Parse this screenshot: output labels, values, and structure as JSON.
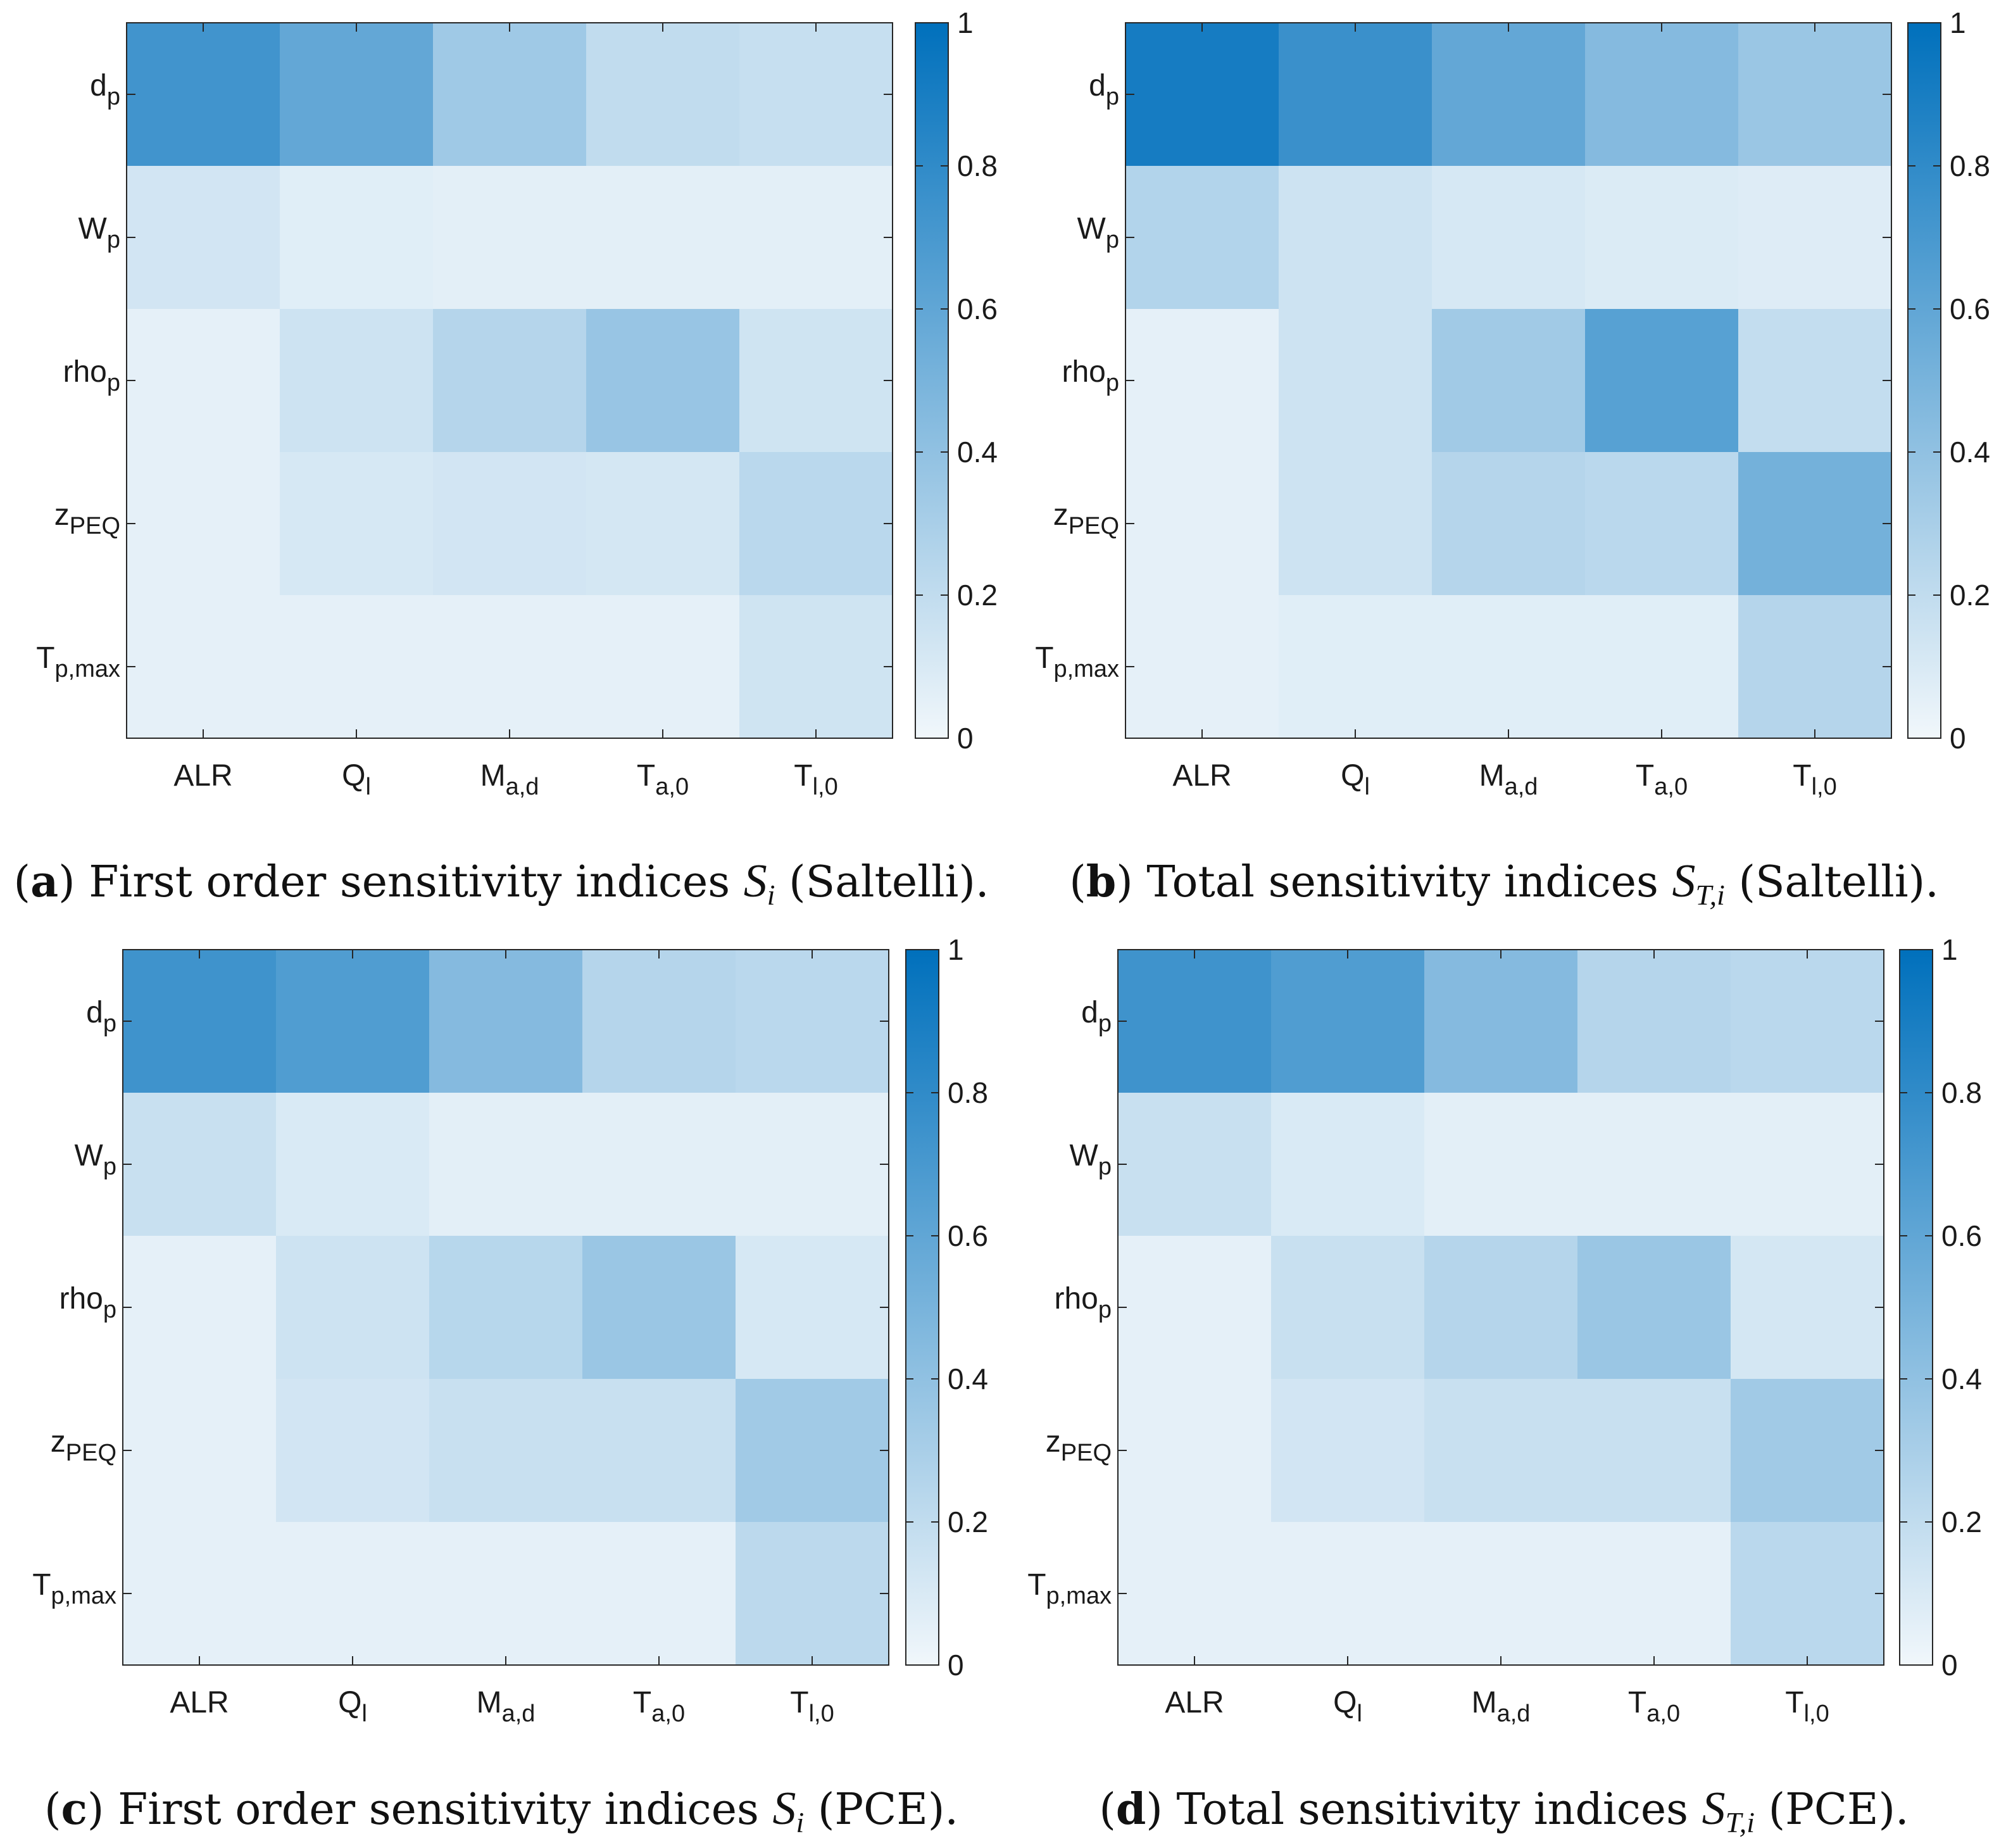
{
  "chart_data": [
    {
      "type": "heatmap",
      "panel": "a",
      "caption": {
        "letter": "a",
        "text_before": "First order sensitivity indices ",
        "symbol": "S",
        "subscript": "i",
        "text_after": " (Saltelli)."
      },
      "x_labels": [
        {
          "base": "ALR",
          "sub": ""
        },
        {
          "base": "Q",
          "sub": "l"
        },
        {
          "base": "M",
          "sub": "a,d"
        },
        {
          "base": "T",
          "sub": "a,0"
        },
        {
          "base": "T",
          "sub": "l,0"
        }
      ],
      "y_labels": [
        {
          "base": "d",
          "sub": "p"
        },
        {
          "base": "W",
          "sub": "p"
        },
        {
          "base": "rho",
          "sub": "p"
        },
        {
          "base": "z",
          "sub": "PEQ"
        },
        {
          "base": "T",
          "sub": "p,max"
        }
      ],
      "values": [
        [
          0.73,
          0.59,
          0.34,
          0.2,
          0.18
        ],
        [
          0.13,
          0.07,
          0.06,
          0.06,
          0.06
        ],
        [
          0.05,
          0.15,
          0.25,
          0.37,
          0.14
        ],
        [
          0.05,
          0.11,
          0.13,
          0.12,
          0.23
        ],
        [
          0.05,
          0.05,
          0.05,
          0.05,
          0.14
        ]
      ],
      "clim": [
        0,
        1
      ],
      "colorbar_ticks": [
        "0",
        "0.2",
        "0.4",
        "0.6",
        "0.8",
        "1"
      ],
      "colormap": {
        "low": "#f1f7fb",
        "high": "#0070bc"
      }
    },
    {
      "type": "heatmap",
      "panel": "b",
      "caption": {
        "letter": "b",
        "text_before": "Total sensitivity indices ",
        "symbol": "S",
        "subscript": "T,i",
        "text_after": " (Saltelli)."
      },
      "x_labels": [
        {
          "base": "ALR",
          "sub": ""
        },
        {
          "base": "Q",
          "sub": "l"
        },
        {
          "base": "M",
          "sub": "a,d"
        },
        {
          "base": "T",
          "sub": "a,0"
        },
        {
          "base": "T",
          "sub": "l,0"
        }
      ],
      "y_labels": [
        {
          "base": "d",
          "sub": "p"
        },
        {
          "base": "W",
          "sub": "p"
        },
        {
          "base": "rho",
          "sub": "p"
        },
        {
          "base": "z",
          "sub": "PEQ"
        },
        {
          "base": "T",
          "sub": "p,max"
        }
      ],
      "values": [
        [
          0.91,
          0.76,
          0.59,
          0.45,
          0.36
        ],
        [
          0.26,
          0.15,
          0.11,
          0.09,
          0.08
        ],
        [
          0.05,
          0.15,
          0.33,
          0.64,
          0.19
        ],
        [
          0.05,
          0.15,
          0.25,
          0.23,
          0.52
        ],
        [
          0.05,
          0.07,
          0.07,
          0.07,
          0.25
        ]
      ],
      "clim": [
        0,
        1
      ],
      "colorbar_ticks": [
        "0",
        "0.2",
        "0.4",
        "0.6",
        "0.8",
        "1"
      ],
      "colormap": {
        "low": "#f1f7fb",
        "high": "#0070bc"
      }
    },
    {
      "type": "heatmap",
      "panel": "c",
      "caption": {
        "letter": "c",
        "text_before": "First order sensitivity indices ",
        "symbol": "S",
        "subscript": "i",
        "text_after": " (PCE)."
      },
      "x_labels": [
        {
          "base": "ALR",
          "sub": ""
        },
        {
          "base": "Q",
          "sub": "l"
        },
        {
          "base": "M",
          "sub": "a,d"
        },
        {
          "base": "T",
          "sub": "a,0"
        },
        {
          "base": "T",
          "sub": "l,0"
        }
      ],
      "y_labels": [
        {
          "base": "d",
          "sub": "p"
        },
        {
          "base": "W",
          "sub": "p"
        },
        {
          "base": "rho",
          "sub": "p"
        },
        {
          "base": "z",
          "sub": "PEQ"
        },
        {
          "base": "T",
          "sub": "p,max"
        }
      ],
      "values": [
        [
          0.74,
          0.67,
          0.45,
          0.25,
          0.23
        ],
        [
          0.17,
          0.1,
          0.06,
          0.06,
          0.06
        ],
        [
          0.05,
          0.15,
          0.24,
          0.36,
          0.11
        ],
        [
          0.05,
          0.13,
          0.17,
          0.17,
          0.33
        ],
        [
          0.05,
          0.05,
          0.05,
          0.05,
          0.22
        ]
      ],
      "clim": [
        0,
        1
      ],
      "colorbar_ticks": [
        "0",
        "0.2",
        "0.4",
        "0.6",
        "0.8",
        "1"
      ],
      "colormap": {
        "low": "#f1f7fb",
        "high": "#0070bc"
      }
    },
    {
      "type": "heatmap",
      "panel": "d",
      "caption": {
        "letter": "d",
        "text_before": "Total sensitivity indices ",
        "symbol": "S",
        "subscript": "T,i",
        "text_after": " (PCE)."
      },
      "x_labels": [
        {
          "base": "ALR",
          "sub": ""
        },
        {
          "base": "Q",
          "sub": "l"
        },
        {
          "base": "M",
          "sub": "a,d"
        },
        {
          "base": "T",
          "sub": "a,0"
        },
        {
          "base": "T",
          "sub": "l,0"
        }
      ],
      "y_labels": [
        {
          "base": "d",
          "sub": "p"
        },
        {
          "base": "W",
          "sub": "p"
        },
        {
          "base": "rho",
          "sub": "p"
        },
        {
          "base": "z",
          "sub": "PEQ"
        },
        {
          "base": "T",
          "sub": "p,max"
        }
      ],
      "values": [
        [
          0.74,
          0.67,
          0.45,
          0.25,
          0.23
        ],
        [
          0.17,
          0.1,
          0.06,
          0.06,
          0.06
        ],
        [
          0.05,
          0.17,
          0.25,
          0.36,
          0.12
        ],
        [
          0.05,
          0.13,
          0.17,
          0.17,
          0.33
        ],
        [
          0.05,
          0.05,
          0.05,
          0.05,
          0.23
        ]
      ],
      "clim": [
        0,
        1
      ],
      "colorbar_ticks": [
        "0",
        "0.2",
        "0.4",
        "0.6",
        "0.8",
        "1"
      ],
      "colormap": {
        "low": "#f1f7fb",
        "high": "#0070bc"
      }
    }
  ]
}
